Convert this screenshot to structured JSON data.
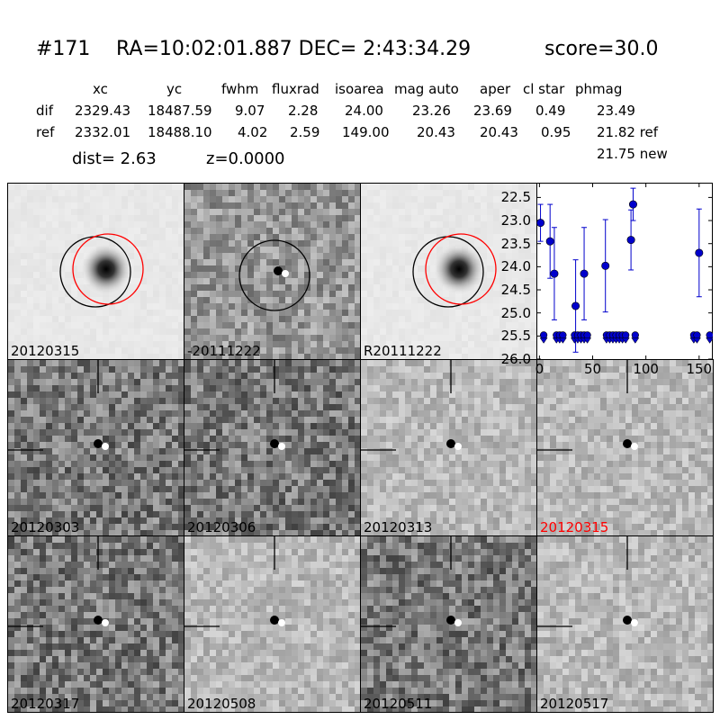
{
  "title": {
    "id": "#171",
    "coords": "RA=10:02:01.887 DEC= 2:43:34.29",
    "score": "score=30.0"
  },
  "table": {
    "columns": [
      "xc",
      "yc",
      "fwhm",
      "fluxrad",
      "isoarea",
      "mag auto",
      "aper",
      "cl star",
      "phmag"
    ],
    "rows": [
      {
        "label": "dif",
        "values": [
          "2329.43",
          "18487.59",
          "9.07",
          "2.28",
          "24.00",
          "23.26",
          "23.69",
          "0.49",
          "23.49"
        ]
      },
      {
        "label": "ref",
        "values": [
          "2332.01",
          "18488.10",
          "4.02",
          "2.59",
          "149.00",
          "20.43",
          "20.43",
          "0.95",
          "21.82 ref"
        ]
      }
    ],
    "extra_phmag": "21.75 new"
  },
  "dist": {
    "dist_text": "dist=  2.63",
    "z_text": "z=0.0000"
  },
  "panels": [
    {
      "label": "20120315",
      "label_color": "#000000",
      "kind": "ref-circles"
    },
    {
      "label": "-20111222",
      "label_color": "#000000",
      "kind": "diff-circle"
    },
    {
      "label": "R20111222",
      "label_color": "#000000",
      "kind": "ref-circles"
    },
    {
      "label": "20120303",
      "label_color": "#000000",
      "kind": "stamp",
      "tone": "dark"
    },
    {
      "label": "20120306",
      "label_color": "#000000",
      "kind": "stamp",
      "tone": "dark"
    },
    {
      "label": "20120313",
      "label_color": "#000000",
      "kind": "stamp",
      "tone": "light"
    },
    {
      "label": "20120315",
      "label_color": "#ff0000",
      "kind": "stamp",
      "tone": "light"
    },
    {
      "label": "20120317",
      "label_color": "#000000",
      "kind": "stamp",
      "tone": "dark"
    },
    {
      "label": "20120508",
      "label_color": "#000000",
      "kind": "stamp",
      "tone": "light"
    },
    {
      "label": "20120511",
      "label_color": "#000000",
      "kind": "stamp",
      "tone": "dark"
    },
    {
      "label": "20120517",
      "label_color": "#000000",
      "kind": "stamp",
      "tone": "light"
    }
  ],
  "chart_data": {
    "type": "scatter",
    "title": "",
    "xlabel": "",
    "ylabel": "",
    "xlim": [
      -2,
      162
    ],
    "ylim": [
      26.0,
      22.2
    ],
    "y_inverted": true,
    "xticks": [
      "0",
      "50",
      "100",
      "150"
    ],
    "yticks": [
      "22.5",
      "23.0",
      "23.5",
      "24.0",
      "24.5",
      "25.0",
      "25.5",
      "26.0"
    ],
    "color": "#0000cc",
    "detections": [
      {
        "x": 1,
        "y": 23.05,
        "err": 0.4
      },
      {
        "x": 10,
        "y": 23.45,
        "err": 0.8
      },
      {
        "x": 14,
        "y": 24.15,
        "err": 1.0
      },
      {
        "x": 34,
        "y": 24.85,
        "err": 1.0
      },
      {
        "x": 42,
        "y": 24.15,
        "err": 1.0
      },
      {
        "x": 62,
        "y": 23.98,
        "err": 1.0
      },
      {
        "x": 86,
        "y": 23.42,
        "err": 0.65
      },
      {
        "x": 88,
        "y": 22.65,
        "err": 0.35
      },
      {
        "x": 150,
        "y": 23.7,
        "err": 0.95
      }
    ],
    "upper_limits": {
      "y": 25.5,
      "x": [
        4,
        16,
        19,
        22,
        33,
        36,
        39,
        42,
        45,
        63,
        66,
        69,
        72,
        75,
        78,
        81,
        90,
        145,
        148,
        160
      ]
    }
  }
}
